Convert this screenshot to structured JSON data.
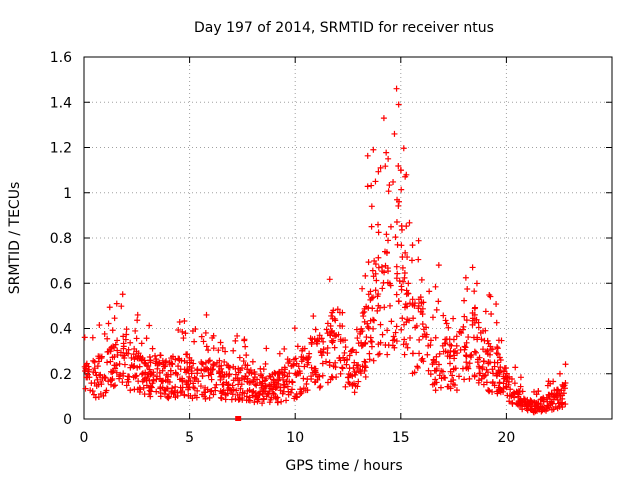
{
  "chart_data": {
    "type": "scatter",
    "title": "Day 197 of 2014, SRMTID for receiver ntus",
    "xlabel": "GPS time / hours",
    "ylabel": "SRMTID / TECUs",
    "xlim": [
      0,
      25
    ],
    "ylim": [
      0,
      1.6
    ],
    "xticks": [
      0,
      5,
      10,
      15,
      20
    ],
    "xtick_labels": [
      "0",
      "5",
      "10",
      "15",
      "20"
    ],
    "yticks": [
      0,
      0.2,
      0.4,
      0.6,
      0.8,
      1,
      1.2,
      1.4,
      1.6
    ],
    "ytick_labels": [
      "0",
      "0.2",
      "0.4",
      "0.6",
      "0.8",
      "1",
      "1.2",
      "1.4",
      "1.6"
    ],
    "grid": true,
    "marker": "plus",
    "color": "#ff0000",
    "x_range_data": [
      0,
      22.8
    ],
    "envelope": [
      {
        "x": 0.0,
        "y": 0.18
      },
      {
        "x": 0.5,
        "y": 0.2
      },
      {
        "x": 1.0,
        "y": 0.22
      },
      {
        "x": 1.5,
        "y": 0.26
      },
      {
        "x": 2.0,
        "y": 0.28
      },
      {
        "x": 2.5,
        "y": 0.22
      },
      {
        "x": 3.0,
        "y": 0.21
      },
      {
        "x": 3.5,
        "y": 0.22
      },
      {
        "x": 4.0,
        "y": 0.2
      },
      {
        "x": 4.5,
        "y": 0.22
      },
      {
        "x": 5.0,
        "y": 0.21
      },
      {
        "x": 5.5,
        "y": 0.18
      },
      {
        "x": 6.0,
        "y": 0.2
      },
      {
        "x": 6.5,
        "y": 0.19
      },
      {
        "x": 7.0,
        "y": 0.17
      },
      {
        "x": 7.5,
        "y": 0.18
      },
      {
        "x": 8.0,
        "y": 0.16
      },
      {
        "x": 8.5,
        "y": 0.15
      },
      {
        "x": 9.0,
        "y": 0.15
      },
      {
        "x": 9.5,
        "y": 0.17
      },
      {
        "x": 10.0,
        "y": 0.2
      },
      {
        "x": 10.5,
        "y": 0.24
      },
      {
        "x": 11.0,
        "y": 0.3
      },
      {
        "x": 11.5,
        "y": 0.32
      },
      {
        "x": 12.0,
        "y": 0.38
      },
      {
        "x": 12.5,
        "y": 0.22
      },
      {
        "x": 13.0,
        "y": 0.28
      },
      {
        "x": 13.5,
        "y": 0.45
      },
      {
        "x": 14.0,
        "y": 0.58
      },
      {
        "x": 14.5,
        "y": 0.62
      },
      {
        "x": 14.8,
        "y": 0.72
      },
      {
        "x": 15.0,
        "y": 0.58
      },
      {
        "x": 15.5,
        "y": 0.42
      },
      {
        "x": 16.0,
        "y": 0.4
      },
      {
        "x": 16.5,
        "y": 0.28
      },
      {
        "x": 17.0,
        "y": 0.28
      },
      {
        "x": 17.5,
        "y": 0.26
      },
      {
        "x": 18.0,
        "y": 0.32
      },
      {
        "x": 18.5,
        "y": 0.36
      },
      {
        "x": 19.0,
        "y": 0.28
      },
      {
        "x": 19.5,
        "y": 0.25
      },
      {
        "x": 20.0,
        "y": 0.2
      },
      {
        "x": 20.5,
        "y": 0.1
      },
      {
        "x": 21.0,
        "y": 0.07
      },
      {
        "x": 21.5,
        "y": 0.06
      },
      {
        "x": 22.0,
        "y": 0.08
      },
      {
        "x": 22.5,
        "y": 0.11
      },
      {
        "x": 22.8,
        "y": 0.12
      }
    ],
    "notable_points": [
      {
        "x": 14.8,
        "y": 1.46
      },
      {
        "x": 14.9,
        "y": 1.39
      },
      {
        "x": 14.2,
        "y": 1.33
      },
      {
        "x": 13.7,
        "y": 1.19
      },
      {
        "x": 14.4,
        "y": 1.15
      },
      {
        "x": 14.7,
        "y": 1.26
      },
      {
        "x": 15.0,
        "y": 1.1
      },
      {
        "x": 13.8,
        "y": 1.05
      },
      {
        "x": 7.3,
        "y": 0.0
      },
      {
        "x": 16.8,
        "y": 0.68
      },
      {
        "x": 18.4,
        "y": 0.67
      },
      {
        "x": 5.8,
        "y": 0.46
      }
    ],
    "sample_count": 1400
  }
}
